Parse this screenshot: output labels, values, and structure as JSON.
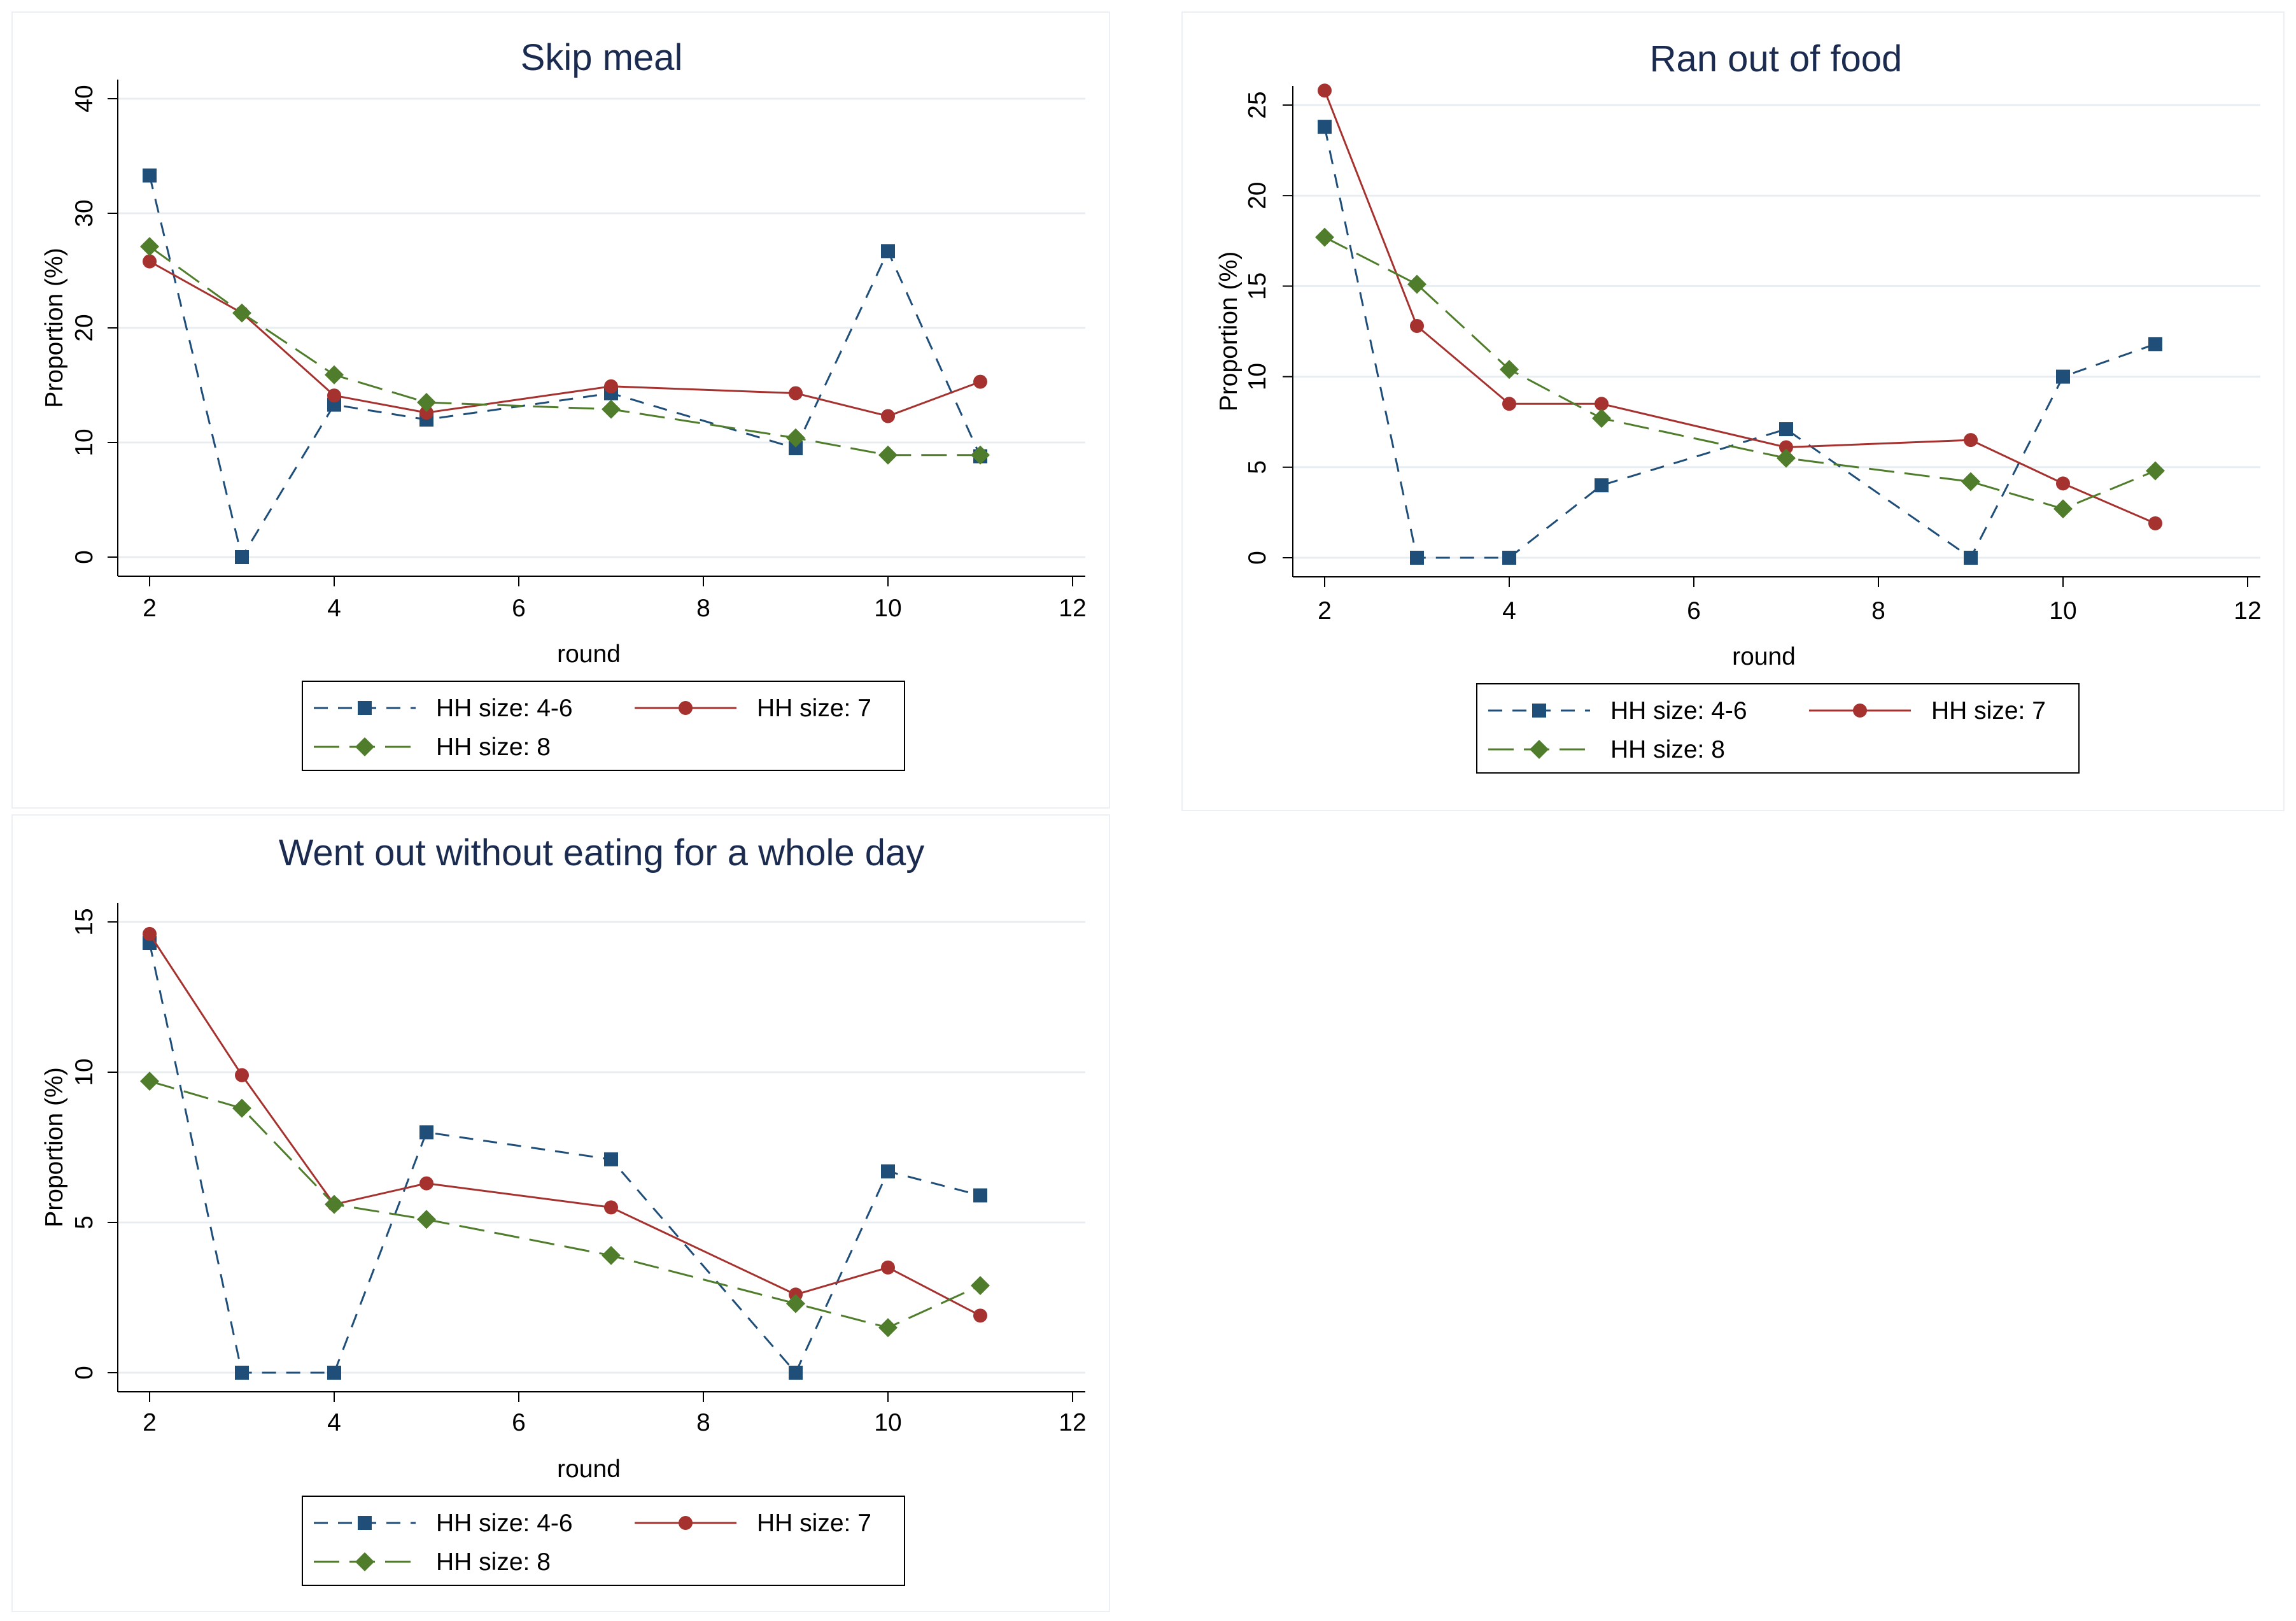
{
  "colors": {
    "series_4_6": "#1f4e79",
    "series_7": "#a5322f",
    "series_8": "#4f7d2b",
    "grid": "#e8edf2",
    "title": "#1a2b4f"
  },
  "chart_data": [
    {
      "type": "line",
      "title": "Skip meal",
      "xlabel": "round",
      "ylabel": "Proportion (%)",
      "xlim": [
        2,
        12
      ],
      "ylim": [
        0,
        40
      ],
      "xticks": [
        "2",
        "4",
        "6",
        "8",
        "10",
        "12"
      ],
      "yticks": [
        "0",
        "10",
        "20",
        "30",
        "40"
      ],
      "grid": true,
      "legend_position": "bottom",
      "series": [
        {
          "name": "HH size: 4-6",
          "marker": "square",
          "dash": "dash",
          "x": [
            2,
            3,
            4,
            5,
            7,
            9,
            10,
            11
          ],
          "values": [
            33.3,
            0,
            13.3,
            12.0,
            14.3,
            9.5,
            26.7,
            8.8
          ]
        },
        {
          "name": "HH size: 7",
          "marker": "circle",
          "dash": "solid",
          "x": [
            2,
            3,
            4,
            5,
            7,
            9,
            10,
            11
          ],
          "values": [
            25.8,
            21.3,
            14.1,
            12.6,
            14.9,
            14.3,
            12.3,
            15.3
          ]
        },
        {
          "name": "HH size: 8",
          "marker": "diamond",
          "dash": "longdash",
          "x": [
            2,
            3,
            4,
            5,
            7,
            9,
            10,
            11
          ],
          "values": [
            27.1,
            21.3,
            15.9,
            13.5,
            12.9,
            10.4,
            8.9,
            8.9
          ]
        }
      ]
    },
    {
      "type": "line",
      "title": "Ran out of food",
      "xlabel": "round",
      "ylabel": "Proportion (%)",
      "xlim": [
        2,
        12
      ],
      "ylim": [
        0,
        25
      ],
      "xticks": [
        "2",
        "4",
        "6",
        "8",
        "10",
        "12"
      ],
      "yticks": [
        "0",
        "5",
        "10",
        "15",
        "20",
        "25"
      ],
      "grid": true,
      "legend_position": "bottom",
      "series": [
        {
          "name": "HH size: 4-6",
          "marker": "square",
          "dash": "dash",
          "x": [
            2,
            3,
            4,
            5,
            7,
            9,
            10,
            11
          ],
          "values": [
            23.8,
            0,
            0,
            4.0,
            7.1,
            0,
            10.0,
            11.8
          ]
        },
        {
          "name": "HH size: 7",
          "marker": "circle",
          "dash": "solid",
          "x": [
            2,
            3,
            4,
            5,
            7,
            9,
            10,
            11
          ],
          "values": [
            25.8,
            12.8,
            8.5,
            8.5,
            6.1,
            6.5,
            4.1,
            1.9
          ]
        },
        {
          "name": "HH size: 8",
          "marker": "diamond",
          "dash": "longdash",
          "x": [
            2,
            3,
            4,
            5,
            7,
            9,
            10,
            11
          ],
          "values": [
            17.7,
            15.1,
            10.4,
            7.7,
            5.5,
            4.2,
            2.7,
            4.8
          ]
        }
      ]
    },
    {
      "type": "line",
      "title": "Went out without eating for a whole day",
      "xlabel": "round",
      "ylabel": "Proportion (%)",
      "xlim": [
        2,
        12
      ],
      "ylim": [
        0,
        15
      ],
      "xticks": [
        "2",
        "4",
        "6",
        "8",
        "10",
        "12"
      ],
      "yticks": [
        "0",
        "5",
        "10",
        "15"
      ],
      "grid": true,
      "legend_position": "bottom",
      "series": [
        {
          "name": "HH size: 4-6",
          "marker": "square",
          "dash": "dash",
          "x": [
            2,
            3,
            4,
            5,
            7,
            9,
            10,
            11
          ],
          "values": [
            14.3,
            0,
            0,
            8.0,
            7.1,
            0,
            6.7,
            5.9
          ]
        },
        {
          "name": "HH size: 7",
          "marker": "circle",
          "dash": "solid",
          "x": [
            2,
            3,
            4,
            5,
            7,
            9,
            10,
            11
          ],
          "values": [
            14.6,
            9.9,
            5.6,
            6.3,
            5.5,
            2.6,
            3.5,
            1.9
          ]
        },
        {
          "name": "HH size: 8",
          "marker": "diamond",
          "dash": "longdash",
          "x": [
            2,
            3,
            4,
            5,
            7,
            9,
            10,
            11
          ],
          "values": [
            9.7,
            8.8,
            5.6,
            5.1,
            3.9,
            2.3,
            1.5,
            2.9
          ]
        }
      ]
    }
  ]
}
